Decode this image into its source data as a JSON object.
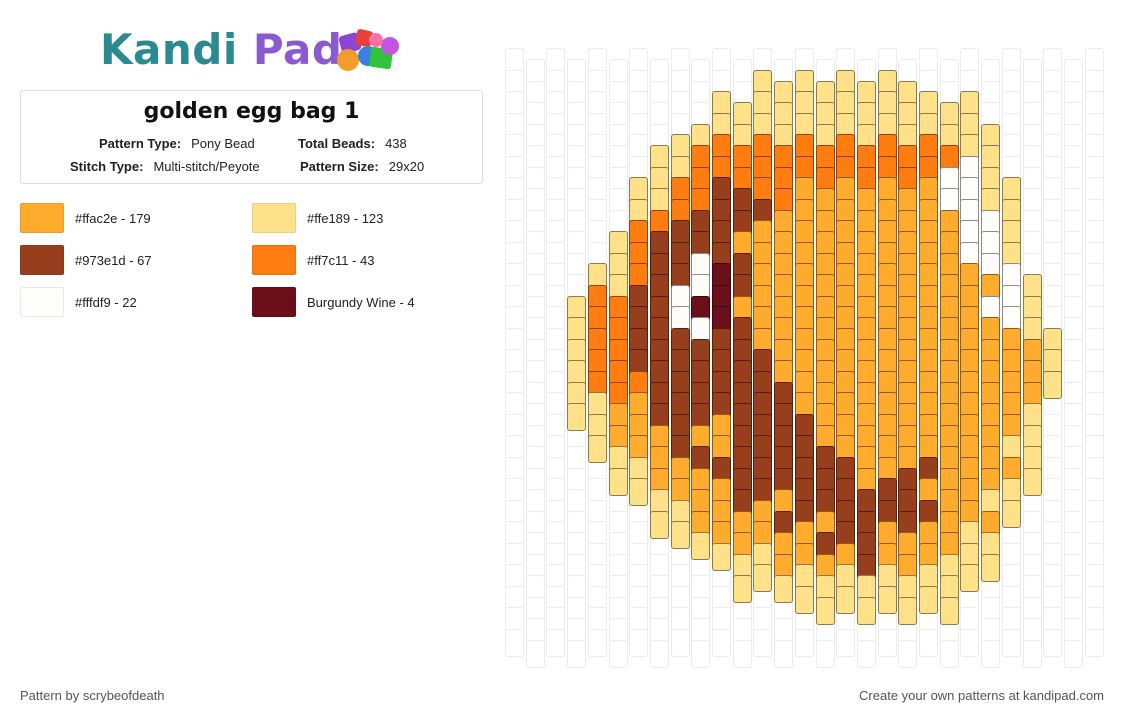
{
  "brand": {
    "name_part1": "Kandi",
    "name_part2": "Pad"
  },
  "pattern": {
    "title": "golden egg bag 1",
    "pattern_type_label": "Pattern Type:",
    "pattern_type": "Pony Bead",
    "total_beads_label": "Total Beads:",
    "total_beads": "438",
    "stitch_type_label": "Stitch Type:",
    "stitch_type": "Multi-stitch/Peyote",
    "pattern_size_label": "Pattern Size:",
    "pattern_size": "29x20"
  },
  "legend": [
    {
      "label": "#ffac2e - 179",
      "color": "#ffac2e"
    },
    {
      "label": "#ffe189 - 123",
      "color": "#ffe189"
    },
    {
      "label": "#973e1d - 67",
      "color": "#973e1d"
    },
    {
      "label": "#ff7c11 - 43",
      "color": "#ff7c11"
    },
    {
      "label": "#fffdf9 - 22",
      "color": "#fffdf9"
    },
    {
      "label": "Burgundy Wine - 4",
      "color": "#6b0f1a"
    }
  ],
  "footer": {
    "credit": "Pattern by scrybeofdeath",
    "cta": "Create your own patterns at kandipad.com"
  },
  "bead_palette": {
    "L": "#ffe189",
    "O": "#ffac2e",
    "R": "#ff7c11",
    "B": "#973e1d",
    "W": "#fffdf9",
    "D": "#6b0f1a"
  },
  "bead_rows": [
    "......LLLLLLLL....",
    "....LLLLLLLLLLLLL.",
    "...LLLLLLLLLLLLLLL",
    "..LLRRRRRRRRRRRRRLL",
    "..LLRRRRRRRRRRRRWWL",
    ".LLRRBBRROOOOOOOWWLL",
    ".LRRBBBBOOOOOOOOOWWL",
    ".LRBBBBOOOOOOOOOOOWWL",
    ".LRBBWBBOOOOOOOOOOWWL",
    "LLRBBWDBOOOOOOOOOOOOWL",
    "LRRBBWDDOOOOOOOOOOOOWWL",
    "LRRBBWWDBOOOOOOOOOOOOWL",
    "LRRBBBBBBOOOOOOOOOOOOOOL",
    "LRRBBBBBBBOOOOOOOOOOOOOL",
    "LRRRBBBBBBBOOOOOOOOOOOOL",
    "LLOOBBBBBBBOOOOOOOOOOOL",
    ".LOOOBOOBBBBOOOOOOOOOOL",
    ".LLOOBBOBBBBBOOOOOOOOLL",
    ".LLOOOBBBBBBBOOBBOOOOL",
    "..LLOOOBBOBBBBBBOOOLL",
    "..LLOOOOBBOBBBBBOOOL",
    "...LLOOOOOBBBOOOOLL",
    "....LLLOOOOBOOOLLL",
    ".....LLLLLLLLLLLL",
    ".......LLLLLLLL"
  ]
}
